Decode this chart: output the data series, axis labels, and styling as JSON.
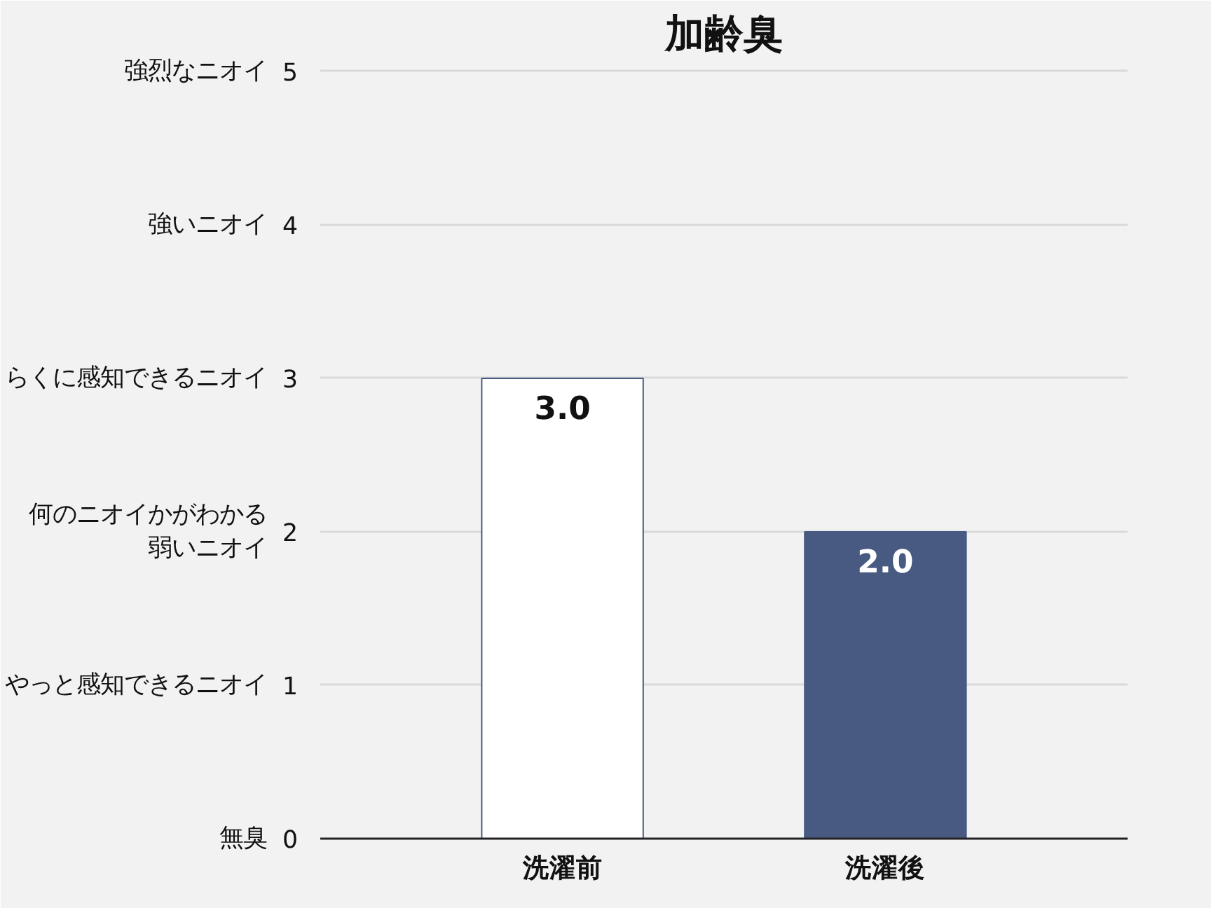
{
  "chart_data": {
    "type": "bar",
    "title": "加齢臭",
    "categories": [
      "洗濯前",
      "洗濯後"
    ],
    "values": [
      3.0,
      2.0
    ],
    "colors": [
      "#ffffff",
      "#485a82"
    ],
    "value_labels": [
      "3.0",
      "2.0"
    ],
    "ylim": [
      0,
      5
    ],
    "yticks": [
      0,
      1,
      2,
      3,
      4,
      5
    ],
    "annotations": [
      "無臭",
      "やっと感知できるニオイ",
      "何のニオイかがわかる弱いニオイ",
      "らくに感知できるニオイ",
      "強いニオイ",
      "強烈なニオイ"
    ],
    "grid": "y"
  }
}
